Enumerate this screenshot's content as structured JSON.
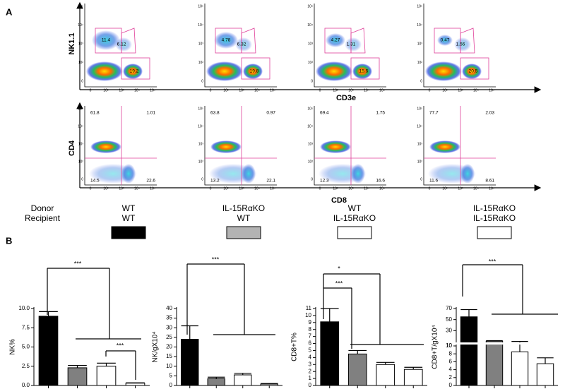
{
  "panel_a": {
    "label": "A",
    "row1": {
      "y_label": "NK1.1",
      "x_label": "CD3e",
      "plots": [
        [
          "11.4",
          "6.12",
          "19.2"
        ],
        [
          "4.78",
          "6.32",
          "19.8"
        ],
        [
          "4.27",
          "1.31",
          "15.5"
        ],
        [
          "0.47",
          "1.56",
          "20.5"
        ]
      ]
    },
    "row2": {
      "y_label": "CD4",
      "x_label": "CD8",
      "plots": [
        [
          "61.8",
          "1.01",
          "14.5",
          "22.6"
        ],
        [
          "63.8",
          "0.97",
          "13.2",
          "22.1"
        ],
        [
          "69.4",
          "1.75",
          "12.3",
          "16.6"
        ],
        [
          "77.7",
          "2.03",
          "11.6",
          "8.61"
        ]
      ]
    },
    "axis_ticks": [
      "0",
      "10²",
      "10³",
      "10⁴",
      "10⁵"
    ]
  },
  "groups": {
    "donor_label": "Donor",
    "recipient_label": "Recipient",
    "items": [
      {
        "donor": "WT",
        "recipient": "WT",
        "color": "#000000"
      },
      {
        "donor": "IL-15RαKO",
        "recipient": "WT",
        "color": "#b3b3b3"
      },
      {
        "donor": "WT",
        "recipient": "IL-15RαKO",
        "color": "#ffffff"
      },
      {
        "donor": "IL-15RαKO",
        "recipient": "IL-15RαKO",
        "color": "#ffffff"
      }
    ]
  },
  "panel_b_label": "B",
  "chart_data": [
    {
      "type": "bar",
      "y_label": "NK%",
      "categories": [
        null,
        null,
        null,
        null
      ],
      "values": [
        9.0,
        2.3,
        2.5,
        0.3
      ],
      "errors": [
        0.6,
        0.3,
        0.4,
        0.05
      ],
      "colors": [
        "#000000",
        "#808080",
        "#ffffff",
        "#ffffff"
      ],
      "ylim": [
        0,
        10
      ],
      "yticks": [
        {
          "value": 0,
          "label": "0.0"
        },
        {
          "value": 2.5,
          "label": "2.5"
        },
        {
          "value": 5,
          "label": "5.0"
        },
        {
          "value": 7.5,
          "label": "7.5"
        },
        {
          "value": 10,
          "label": "10.0"
        }
      ],
      "annotations": [
        "***",
        "***"
      ]
    },
    {
      "type": "bar",
      "y_label": "NK/gX10⁴",
      "categories": [
        null,
        null,
        null,
        null
      ],
      "values": [
        24,
        3.5,
        5.5,
        0.7
      ],
      "errors": [
        7,
        0.8,
        0.8,
        0.3
      ],
      "colors": [
        "#000000",
        "#808080",
        "#ffffff",
        "#ffffff"
      ],
      "ylim": [
        0,
        40
      ],
      "yticks": [
        0,
        5,
        10,
        15,
        20,
        25,
        30,
        35,
        40
      ],
      "annotations": [
        "***"
      ]
    },
    {
      "type": "bar",
      "y_label": "CD8+T%",
      "categories": [
        null,
        null,
        null,
        null
      ],
      "values": [
        9.1,
        4.5,
        3.0,
        2.3
      ],
      "errors": [
        1.9,
        0.5,
        0.3,
        0.3
      ],
      "colors": [
        "#000000",
        "#808080",
        "#ffffff",
        "#ffffff"
      ],
      "ylim": [
        0,
        11
      ],
      "yticks": [
        0,
        1,
        2,
        3,
        4,
        5,
        6,
        7,
        8,
        9,
        10,
        11
      ],
      "annotations": [
        "*",
        "***"
      ]
    },
    {
      "type": "bar",
      "y_label": "CD8+T/gX10⁴",
      "categories": [
        null,
        null,
        null,
        null
      ],
      "values": [
        55,
        11,
        8.5,
        5.5
      ],
      "errors": [
        13,
        1,
        2,
        1.5
      ],
      "colors": [
        "#000000",
        "#808080",
        "#ffffff",
        "#ffffff"
      ],
      "segments": [
        {
          "ylim": [
            0,
            10
          ],
          "yticks": [
            0,
            2,
            4,
            6,
            8,
            10
          ]
        },
        {
          "ylim": [
            10,
            70
          ],
          "yticks": [
            10,
            30,
            50,
            70
          ]
        }
      ],
      "annotations": [
        "***"
      ]
    }
  ]
}
